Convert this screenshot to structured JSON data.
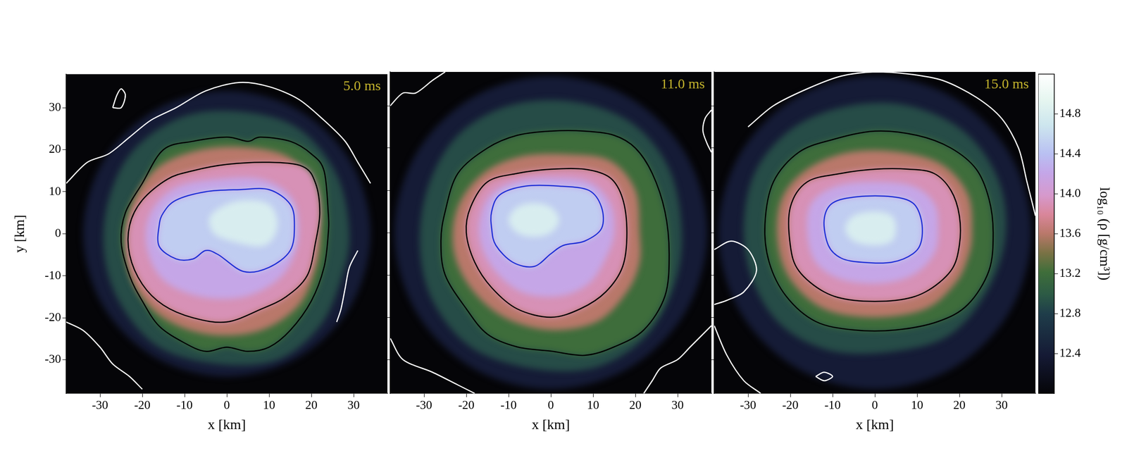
{
  "chart_data": [
    {
      "type": "contour",
      "title": "5.0 ms",
      "x_label": "x [km]",
      "y_label": "y [km]",
      "xlim": [
        -38,
        38
      ],
      "ylim": [
        -38,
        38
      ],
      "xticks": [
        -30,
        -20,
        -10,
        0,
        10,
        20,
        30
      ],
      "yticks": [
        -30,
        -20,
        -10,
        0,
        10,
        20,
        30
      ],
      "grid": false,
      "series": [
        {
          "level": 12.4,
          "x": [
            34,
            29.4,
            17,
            0,
            -17,
            -29.4,
            -34,
            -29.4,
            -17,
            0,
            17,
            29.4
          ],
          "y": [
            0,
            17,
            29.4,
            34,
            29.4,
            17,
            0,
            -17,
            -29.4,
            -34,
            -29.4,
            -17
          ]
        },
        {
          "level": 12.9,
          "x": [
            29,
            26,
            17,
            4,
            -10,
            -22,
            -28,
            -29,
            -25,
            -16,
            -2,
            12,
            22,
            27
          ],
          "y": [
            0,
            14,
            25,
            29,
            28,
            20,
            8,
            -5,
            -17,
            -27,
            -31,
            -30,
            -22,
            -11
          ]
        },
        {
          "level": 13.2,
          "color": "#000000",
          "x": [
            -24,
            -20,
            -15,
            -8,
            0,
            5,
            8,
            15,
            20,
            23,
            24,
            24,
            23,
            20,
            15,
            10,
            5,
            0,
            -5,
            -10,
            -16,
            -20,
            -23,
            -25
          ],
          "y": [
            5,
            12,
            20,
            22,
            23,
            22,
            23,
            22,
            19,
            15,
            5,
            0,
            -8,
            -16,
            -23,
            -27,
            -28,
            -27,
            -28,
            -26,
            -22,
            -16,
            -10,
            -2
          ]
        },
        {
          "level": 13.6,
          "x": [
            22,
            21,
            15,
            5,
            -6,
            -16,
            -22,
            -24,
            -22,
            -15,
            -4,
            8,
            17,
            21
          ],
          "y": [
            0,
            10,
            18,
            20.5,
            20,
            16,
            8,
            -2,
            -12,
            -20,
            -24,
            -23,
            -17,
            -8
          ]
        },
        {
          "level": 13.9,
          "color": "#000000",
          "x": [
            -8,
            0,
            10,
            18,
            21,
            22,
            21,
            19,
            14,
            8,
            0,
            -8,
            -15,
            -20,
            -23,
            -23,
            -20,
            -14
          ],
          "y": [
            15,
            16.5,
            17,
            16,
            12,
            5,
            -2,
            -10,
            -15,
            -18,
            -21,
            -20,
            -17,
            -12,
            -5,
            2,
            8,
            13
          ]
        },
        {
          "level": 14.2,
          "x": [
            17,
            15,
            8,
            -2,
            -12,
            -18,
            -19,
            -15,
            -6,
            4,
            12,
            16
          ],
          "y": [
            2,
            9,
            13,
            13,
            11,
            5,
            -3,
            -11,
            -15,
            -15,
            -11,
            -5
          ]
        },
        {
          "level": 14.5,
          "color": "#1f2fd6",
          "x": [
            -15,
            -12,
            -5,
            3,
            10,
            15,
            16,
            15,
            10,
            4,
            -2,
            -5,
            -8,
            -12,
            -16,
            -16
          ],
          "y": [
            5,
            8,
            10,
            10.5,
            10.5,
            7,
            2,
            -4,
            -8,
            -9,
            -5,
            -4,
            -6,
            -6,
            -3,
            2
          ]
        },
        {
          "level": 14.8,
          "x": [
            12,
            10,
            5,
            0,
            -4,
            -3,
            2,
            8,
            11
          ],
          "y": [
            3,
            7,
            8,
            7,
            4,
            0,
            -2,
            -3,
            -1
          ]
        },
        {
          "color": "#ffffff",
          "x": [
            -38,
            -33,
            -28,
            -23,
            -18,
            -12,
            -5,
            3,
            10,
            17,
            23,
            28,
            31,
            34
          ],
          "y": [
            12,
            17,
            19,
            23,
            27,
            30,
            34,
            36,
            35,
            32,
            27,
            22,
            17,
            12
          ]
        },
        {
          "color": "#ffffff",
          "x": [
            31,
            29,
            28,
            27,
            26
          ],
          "y": [
            -4,
            -8,
            -13,
            -18,
            -21
          ]
        },
        {
          "color": "#ffffff",
          "x": [
            -38,
            -34,
            -30,
            -27,
            -23,
            -20
          ],
          "y": [
            -21,
            -23,
            -27,
            -31,
            -34,
            -37
          ]
        },
        {
          "color": "#ffffff",
          "x": [
            -27,
            -26,
            -25,
            -24,
            -25,
            -27
          ],
          "y": [
            30,
            33,
            34.5,
            33,
            30,
            30
          ]
        }
      ]
    },
    {
      "type": "contour",
      "title": "11.0 ms",
      "x_label": "x [km]",
      "xlim": [
        -38,
        38
      ],
      "ylim": [
        -38,
        38
      ],
      "xticks": [
        -30,
        -20,
        -10,
        0,
        10,
        20,
        30
      ],
      "yticks": [
        -30,
        -20,
        -10,
        0,
        10,
        20,
        30
      ],
      "grid": false,
      "tick_labels": "x",
      "series": [
        {
          "level": 12.4,
          "x": [
            37,
            32,
            18.5,
            0,
            -18.5,
            -32,
            -37,
            -32,
            -18.5,
            0,
            18.5,
            32
          ],
          "y": [
            0,
            18.5,
            32,
            37,
            32,
            18.5,
            0,
            -18.5,
            -32,
            -37,
            -32,
            -18.5
          ]
        },
        {
          "level": 12.9,
          "x": [
            31,
            28,
            19,
            5,
            -10,
            -22,
            -29,
            -31,
            -28,
            -19,
            -5,
            10,
            22,
            29
          ],
          "y": [
            0,
            15,
            26,
            31,
            30,
            23,
            11,
            -3,
            -16,
            -27,
            -32,
            -32,
            -25,
            -13
          ]
        },
        {
          "level": 13.2,
          "color": "#000000",
          "x": [
            -25,
            -22,
            -15,
            -8,
            0,
            8,
            15,
            20,
            24,
            27,
            28,
            27,
            22,
            15,
            8,
            0,
            -8,
            -15,
            -20,
            -25,
            -26
          ],
          "y": [
            5,
            14,
            20,
            23,
            24,
            24,
            23,
            20,
            14,
            5,
            -5,
            -15,
            -23,
            -27,
            -29,
            -28,
            -27,
            -24,
            -18,
            -10,
            -2
          ]
        },
        {
          "level": 13.6,
          "x": [
            21,
            20,
            14,
            4,
            -7,
            -16,
            -22,
            -23,
            -19,
            -11,
            0,
            11,
            18,
            21
          ],
          "y": [
            0,
            10,
            17,
            18.5,
            18,
            14,
            6,
            -4,
            -13,
            -20,
            -23,
            -21,
            -14,
            -7
          ]
        },
        {
          "level": 13.9,
          "color": "#000000",
          "x": [
            -19,
            -15,
            -8,
            0,
            8,
            14,
            17,
            18,
            17,
            13,
            7,
            0,
            -8,
            -14,
            -18,
            -20
          ],
          "y": [
            6,
            12,
            14,
            15,
            15,
            13,
            8,
            0,
            -8,
            -14,
            -18,
            -20,
            -18,
            -13,
            -7,
            0
          ]
        },
        {
          "level": 14.2,
          "x": [
            15,
            14,
            9,
            0,
            -9,
            -15,
            -17,
            -14,
            -7,
            2,
            9,
            13
          ],
          "y": [
            0,
            7,
            12,
            13,
            12,
            8,
            0,
            -8,
            -14,
            -15,
            -12,
            -6
          ]
        },
        {
          "level": 14.5,
          "color": "#1f2fd6",
          "x": [
            -14,
            -12,
            -6,
            2,
            9,
            12,
            12,
            8,
            3,
            0,
            -4,
            -9,
            -13,
            -14
          ],
          "y": [
            5,
            9,
            11,
            11,
            10,
            6,
            1,
            -2,
            -3,
            -5,
            -8,
            -7,
            -3,
            1
          ]
        },
        {
          "level": 14.8,
          "x": [
            2,
            0,
            -4,
            -8,
            -10,
            -8,
            -4,
            0
          ],
          "y": [
            3,
            6,
            7,
            6,
            3,
            0,
            -1,
            0
          ]
        },
        {
          "color": "#ffffff",
          "x": [
            -38,
            -35,
            -32,
            -28,
            -25
          ],
          "y": [
            30,
            33,
            33,
            36,
            38
          ]
        },
        {
          "color": "#ffffff",
          "x": [
            -38,
            -35,
            -28,
            -22,
            -18
          ],
          "y": [
            -25,
            -30,
            -33,
            -36,
            -38
          ]
        },
        {
          "color": "#ffffff",
          "x": [
            38,
            33,
            30,
            26,
            24,
            22
          ],
          "y": [
            -22,
            -27,
            -30,
            -32,
            -35,
            -38
          ]
        },
        {
          "color": "#ffffff",
          "x": [
            38,
            36.5,
            36,
            37,
            38
          ],
          "y": [
            29,
            27,
            24,
            21,
            19
          ]
        }
      ]
    },
    {
      "type": "contour",
      "title": "15.0 ms",
      "x_label": "x [km]",
      "xlim": [
        -38,
        38
      ],
      "ylim": [
        -38,
        38
      ],
      "xticks": [
        -30,
        -20,
        -10,
        0,
        10,
        20,
        30
      ],
      "yticks": [
        -30,
        -20,
        -10,
        0,
        10,
        20,
        30
      ],
      "grid": false,
      "tick_labels": "x",
      "series": [
        {
          "level": 12.4,
          "x": [
            37,
            32,
            18.5,
            0,
            -18.5,
            -32,
            -37,
            -32,
            -18.5,
            0,
            18.5,
            32
          ],
          "y": [
            0,
            18.5,
            32,
            37,
            32,
            18.5,
            0,
            -18.5,
            -32,
            -37,
            -32,
            -18.5
          ]
        },
        {
          "level": 12.9,
          "x": [
            31,
            29,
            21,
            8,
            -6,
            -19,
            -28,
            -31,
            -29,
            -22,
            -10,
            5,
            18,
            27
          ],
          "y": [
            0,
            13,
            24,
            30,
            30,
            25,
            15,
            2,
            -11,
            -22,
            -28,
            -28,
            -24,
            -13
          ]
        },
        {
          "level": 13.2,
          "color": "#000000",
          "x": [
            -26,
            -24,
            -18,
            -10,
            0,
            10,
            18,
            24,
            27,
            28,
            27,
            22,
            15,
            5,
            -5,
            -14,
            -21,
            -25
          ],
          "y": [
            2,
            12,
            19,
            22,
            24,
            23,
            20,
            15,
            8,
            0,
            -9,
            -17,
            -21,
            -23,
            -23,
            -21,
            -15,
            -7
          ]
        },
        {
          "level": 13.6,
          "x": [
            23,
            22,
            16,
            6,
            -6,
            -16,
            -22,
            -23,
            -20,
            -12,
            0,
            12,
            19,
            22
          ],
          "y": [
            0,
            9,
            16,
            19,
            19,
            15,
            8,
            -2,
            -11,
            -18,
            -20,
            -18,
            -12,
            -6
          ]
        },
        {
          "level": 13.9,
          "color": "#000000",
          "x": [
            -20,
            -16,
            -8,
            0,
            8,
            14,
            18,
            20,
            20,
            18,
            12,
            5,
            -5,
            -12,
            -18,
            -20
          ],
          "y": [
            6,
            12,
            14,
            15,
            15,
            14,
            10,
            4,
            -3,
            -9,
            -14,
            -16,
            -16,
            -14,
            -9,
            -3
          ]
        },
        {
          "level": 14.2,
          "x": [
            15,
            14,
            9,
            0,
            -9,
            -15,
            -16,
            -14,
            -8,
            1,
            9,
            14
          ],
          "y": [
            1,
            7,
            11,
            12,
            11,
            7,
            0,
            -7,
            -11,
            -12,
            -10,
            -5
          ]
        },
        {
          "level": 14.5,
          "color": "#1f2fd6",
          "x": [
            -12,
            -10,
            -4,
            4,
            9,
            11,
            11,
            9,
            4,
            -3,
            -8,
            -11
          ],
          "y": [
            3,
            7,
            8.5,
            8.5,
            7,
            3,
            -2,
            -5,
            -7,
            -7,
            -6,
            -3
          ]
        },
        {
          "level": 14.8,
          "x": [
            5,
            4,
            0,
            -5,
            -7,
            -5,
            0,
            4
          ],
          "y": [
            1,
            4,
            5,
            4,
            1,
            -2,
            -3,
            -2
          ]
        },
        {
          "color": "#ffffff",
          "x": [
            -30,
            -24,
            -16,
            -8,
            0,
            8,
            16,
            24,
            30,
            34,
            36,
            38
          ],
          "y": [
            25,
            30,
            34,
            37,
            38,
            37.5,
            36,
            32,
            27,
            20,
            12,
            4
          ]
        },
        {
          "color": "#ffffff",
          "x": [
            -38,
            -34,
            -30,
            -28,
            -31,
            -35,
            -38
          ],
          "y": [
            -4,
            -2,
            -4,
            -9,
            -14,
            -16,
            -17
          ]
        },
        {
          "color": "#ffffff",
          "x": [
            -38,
            -35,
            -31,
            -27
          ],
          "y": [
            -22,
            -29,
            -35,
            -38
          ]
        },
        {
          "color": "#ffffff",
          "x": [
            -14,
            -12,
            -10,
            -12,
            -14
          ],
          "y": [
            -34,
            -33,
            -34,
            -35,
            -34
          ]
        }
      ]
    },
    {
      "type": "colorbar",
      "y_label": "log₁₀ (ρ [g/cm³])",
      "ylim": [
        12.0,
        15.2
      ],
      "yticks": [
        12.4,
        12.8,
        13.2,
        13.6,
        {
          "value": 14,
          "label": "14.0"
        },
        14.4,
        14.8
      ]
    }
  ]
}
